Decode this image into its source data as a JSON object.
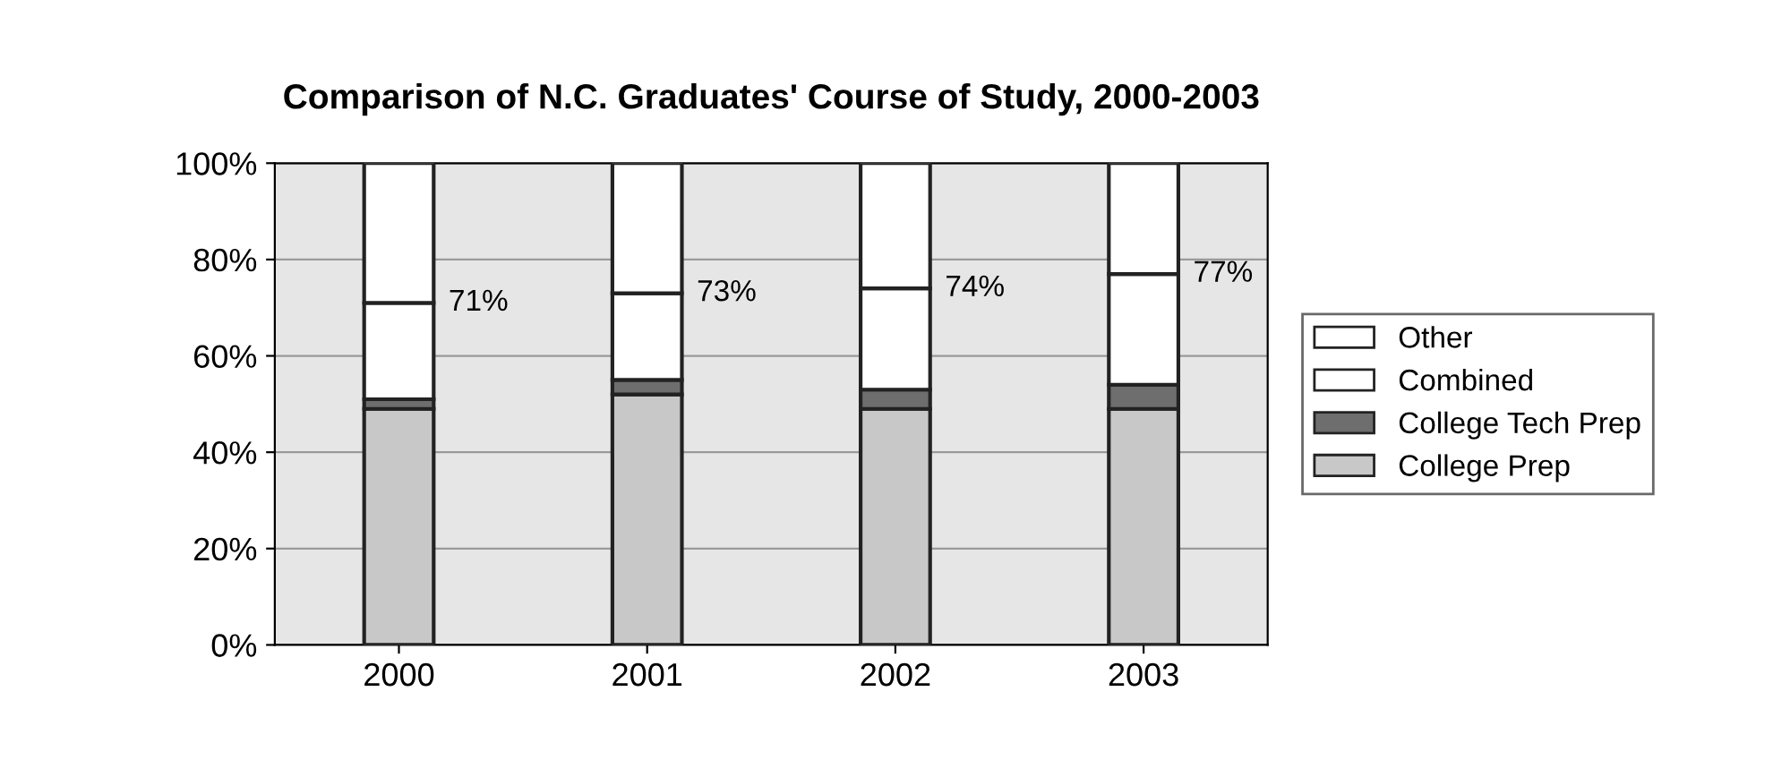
{
  "chart_data": {
    "type": "bar",
    "title": "Comparison of N.C. Graduates' Course of Study, 2000-2003",
    "categories": [
      "2000",
      "2001",
      "2002",
      "2003"
    ],
    "stacked": true,
    "series": [
      {
        "name": "College Prep",
        "color": "#c8c8c8",
        "values": [
          49,
          52,
          49,
          49
        ]
      },
      {
        "name": "College Tech Prep",
        "color": "#6e6e6e",
        "values": [
          2,
          3,
          4,
          5
        ]
      },
      {
        "name": "Combined",
        "color": "#ffffff",
        "values": [
          20,
          18,
          21,
          23
        ]
      },
      {
        "name": "Other",
        "color": "#ffffff",
        "values": [
          29,
          27,
          26,
          23
        ]
      }
    ],
    "ylim": [
      0,
      100
    ],
    "yticks": [
      {
        "value": 0,
        "label": "0%"
      },
      {
        "value": 20,
        "label": "20%"
      },
      {
        "value": 40,
        "label": "40%"
      },
      {
        "value": 60,
        "label": "60%"
      },
      {
        "value": 80,
        "label": "80%"
      },
      {
        "value": 100,
        "label": "100%"
      }
    ],
    "grid": "y",
    "legend": "right",
    "annotations": [
      {
        "text": "71%",
        "x": "2000",
        "y": 71
      },
      {
        "text": "73%",
        "x": "2001",
        "y": 73
      },
      {
        "text": "74%",
        "x": "2002",
        "y": 74
      },
      {
        "text": "77%",
        "x": "2003",
        "y": 77
      }
    ]
  }
}
